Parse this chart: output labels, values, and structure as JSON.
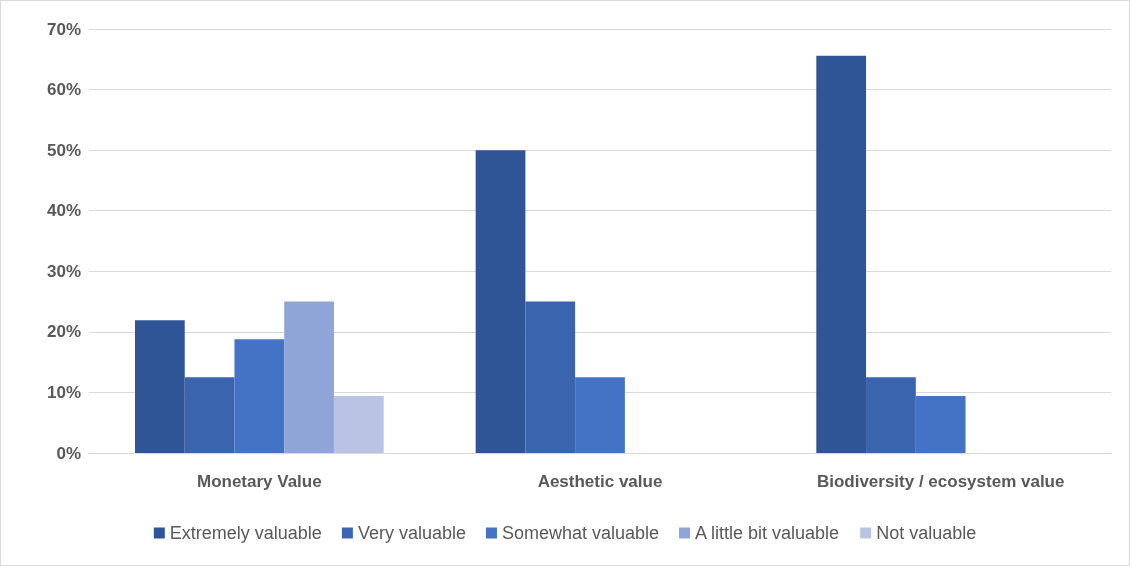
{
  "chart_data": {
    "type": "bar",
    "categories": [
      "Monetary Value",
      "Aesthetic value",
      "Biodiversity / ecosystem value"
    ],
    "series": [
      {
        "name": "Extremely valuable",
        "color": "#2f5597",
        "values": [
          21.9,
          50,
          65.6
        ]
      },
      {
        "name": "Very valuable",
        "color": "#3a64ae",
        "values": [
          12.5,
          25,
          12.5
        ]
      },
      {
        "name": "Somewhat valuable",
        "color": "#4472c4",
        "values": [
          18.8,
          12.5,
          9.4
        ]
      },
      {
        "name": "A little bit valuable",
        "color": "#8fa5d8",
        "values": [
          25,
          0,
          0
        ]
      },
      {
        "name": "Not valuable",
        "color": "#b9c4e4",
        "values": [
          9.4,
          0,
          0
        ]
      }
    ],
    "ylim": [
      0,
      70
    ],
    "yticks": [
      {
        "value": 0,
        "label": "0%"
      },
      {
        "value": 10,
        "label": "10%"
      },
      {
        "value": 20,
        "label": "20%"
      },
      {
        "value": 30,
        "label": "30%"
      },
      {
        "value": 40,
        "label": "40%"
      },
      {
        "value": 50,
        "label": "50%"
      },
      {
        "value": 60,
        "label": "60%"
      },
      {
        "value": 70,
        "label": "70%"
      }
    ],
    "grid": "y",
    "legend": "bottom"
  }
}
